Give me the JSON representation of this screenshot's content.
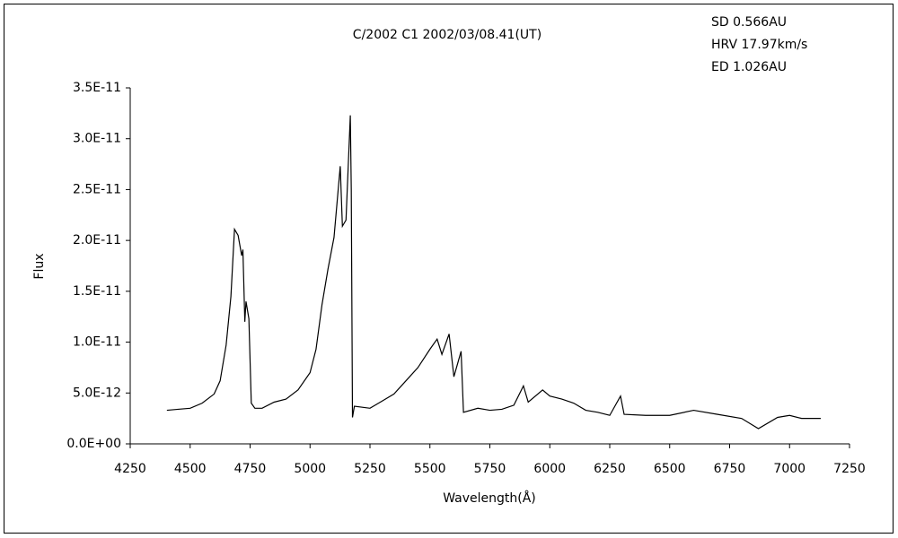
{
  "chart_data": {
    "type": "line",
    "title": "C/2002 C1    2002/03/08.41(UT)",
    "annotations": [
      "SD 0.566AU",
      "HRV 17.97km/s",
      "ED 1.026AU"
    ],
    "x_label": "Wavelength(Å)",
    "y_label": "Flux",
    "xlim": [
      4250,
      7250
    ],
    "xticks": [
      4250,
      4500,
      4750,
      5000,
      5250,
      5500,
      5750,
      6000,
      6250,
      6500,
      6750,
      7000,
      7250
    ],
    "ylim": [
      0,
      3.5e-11
    ],
    "yticks": [
      {
        "value": 0,
        "label": "0.0E+00"
      },
      {
        "value": 5e-12,
        "label": "5.0E-12"
      },
      {
        "value": 1e-11,
        "label": "1.0E-11"
      },
      {
        "value": 1.5e-11,
        "label": "1.5E-11"
      },
      {
        "value": 2e-11,
        "label": "2.0E-11"
      },
      {
        "value": 2.5e-11,
        "label": "2.5E-11"
      },
      {
        "value": 3e-11,
        "label": "3.0E-11"
      },
      {
        "value": 3.5e-11,
        "label": "3.5E-11"
      }
    ],
    "grid": false,
    "color": "#000000",
    "x": [
      4403,
      4450,
      4500,
      4550,
      4600,
      4625,
      4650,
      4670,
      4685,
      4700,
      4715,
      4720,
      4728,
      4733,
      4745,
      4755,
      4770,
      4800,
      4850,
      4900,
      4950,
      5000,
      5025,
      5050,
      5075,
      5100,
      5126,
      5135,
      5150,
      5168,
      5172,
      5177,
      5185,
      5250,
      5300,
      5350,
      5400,
      5450,
      5500,
      5530,
      5550,
      5580,
      5600,
      5630,
      5640,
      5700,
      5750,
      5800,
      5850,
      5890,
      5910,
      5970,
      6000,
      6050,
      6100,
      6150,
      6200,
      6250,
      6295,
      6310,
      6400,
      6500,
      6600,
      6700,
      6800,
      6870,
      6950,
      7000,
      7050,
      7130
    ],
    "values": [
      3.3e-12,
      3.4e-12,
      3.5e-12,
      4e-12,
      4.9e-12,
      6.2e-12,
      9.7e-12,
      1.45e-11,
      2.11e-11,
      2.05e-11,
      1.85e-11,
      1.91e-11,
      1.2e-11,
      1.4e-11,
      1.23e-11,
      4e-12,
      3.5e-12,
      3.5e-12,
      4.1e-12,
      4.4e-12,
      5.3e-12,
      7e-12,
      9.3e-12,
      1.37e-11,
      1.72e-11,
      2.03e-11,
      2.73e-11,
      2.14e-11,
      2.2e-11,
      3.23e-11,
      2.5e-11,
      2.6e-12,
      3.7e-12,
      3.5e-12,
      4.2e-12,
      4.9e-12,
      6.2e-12,
      7.5e-12,
      9.3e-12,
      1.03e-11,
      8.8e-12,
      1.08e-11,
      6.6e-12,
      9.1e-12,
      3.1e-12,
      3.5e-12,
      3.3e-12,
      3.4e-12,
      3.8e-12,
      5.7e-12,
      4.1e-12,
      5.3e-12,
      4.7e-12,
      4.4e-12,
      4e-12,
      3.3e-12,
      3.1e-12,
      2.8e-12,
      4.7e-12,
      2.9e-12,
      2.8e-12,
      2.8e-12,
      3.3e-12,
      2.9e-12,
      2.5e-12,
      1.5e-12,
      2.6e-12,
      2.8e-12,
      2.5e-12,
      2.5e-12
    ]
  }
}
